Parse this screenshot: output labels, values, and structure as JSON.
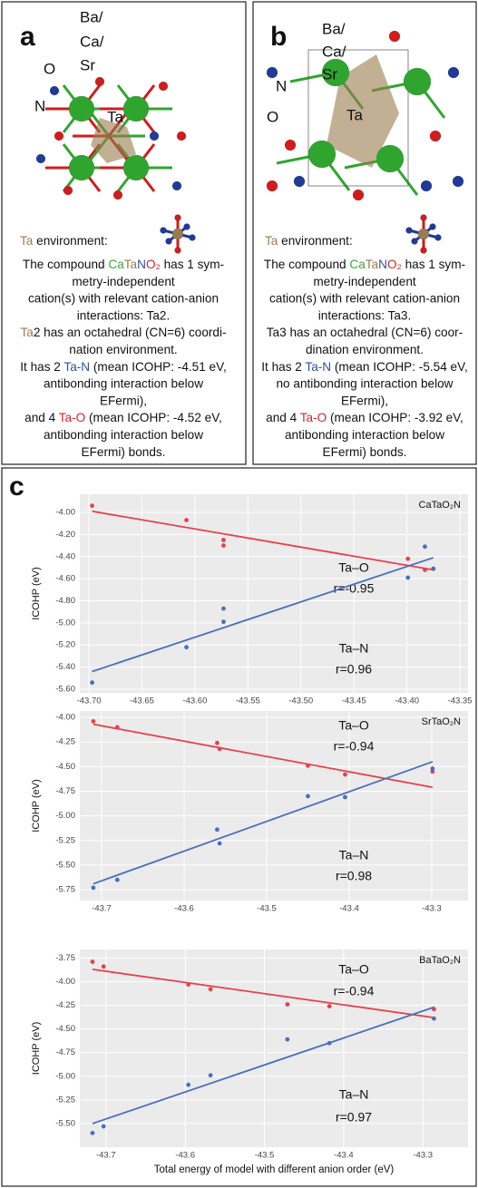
{
  "panel_a": {
    "label": "a",
    "species": [
      {
        "text": "Ba/",
        "color": "#3aa63a"
      },
      {
        "text": "Ca/",
        "color": "#3aa63a"
      },
      {
        "text": "Sr",
        "color": "#3aa63a"
      },
      {
        "text": "O",
        "color": "#d62728"
      },
      {
        "text": "N",
        "color": "#2f4fa0"
      },
      {
        "text": "Ta",
        "color": "#111111"
      }
    ],
    "environment": [
      {
        "text": "Ta",
        "color": "#9a7b4f"
      },
      " environment:"
    ],
    "lines": [
      [
        "The compound ",
        {
          "text": "Ca",
          "color": "#3aa63a"
        },
        {
          "text": "Ta",
          "color": "#9a7b4f"
        },
        {
          "text": "N",
          "color": "#2f4fa0"
        },
        {
          "text": "O₂",
          "color": "#d62728"
        },
        " has 1 sym-"
      ],
      [
        "metry-independent"
      ],
      [
        "cation(s) with relevant cation-anion"
      ],
      [
        "interactions: Ta2."
      ],
      [
        {
          "text": "Ta",
          "color": "#9a7b4f"
        },
        "2 has an octahedral (CN=6) coordi-"
      ],
      [
        "nation environment."
      ],
      [
        "It has 2 ",
        {
          "text": "Ta-N",
          "color": "#2f4fa0"
        },
        " (mean ICOHP: -4.51 eV,"
      ],
      [
        "antibonding interaction below"
      ],
      [
        "EFermi),"
      ],
      [
        "and 4 ",
        {
          "text": "Ta-O",
          "color": "#d62728"
        },
        " (mean ICOHP: -4.52 eV,"
      ],
      [
        "antibonding interaction below"
      ],
      [
        "EFermi) bonds."
      ]
    ]
  },
  "panel_b": {
    "label": "b",
    "species": [
      {
        "text": "Ba/",
        "color": "#3aa63a"
      },
      {
        "text": "Ca/",
        "color": "#3aa63a"
      },
      {
        "text": "Sr",
        "color": "#3aa63a"
      },
      {
        "text": "N",
        "color": "#2f4fa0"
      },
      {
        "text": "O",
        "color": "#d62728"
      },
      {
        "text": "Ta",
        "color": "#111111"
      }
    ],
    "environment": [
      {
        "text": "Ta",
        "color": "#9a7b4f"
      },
      " environment:"
    ],
    "lines": [
      [
        "The compound ",
        {
          "text": "Ca",
          "color": "#3aa63a"
        },
        {
          "text": "Ta",
          "color": "#9a7b4f"
        },
        {
          "text": "N",
          "color": "#2f4fa0"
        },
        {
          "text": "O₂",
          "color": "#d62728"
        },
        " has 1 sym-"
      ],
      [
        "metry-independent"
      ],
      [
        "cation(s) with relevant cation-anion"
      ],
      [
        "interactions: Ta3."
      ],
      [
        "Ta3 has an octahedral (CN=6) coor-"
      ],
      [
        "dination environment."
      ],
      [
        "It has 2 ",
        {
          "text": "Ta-N",
          "color": "#2f4fa0"
        },
        " (mean ICOHP: -5.54 eV,"
      ],
      [
        "no antibonding interaction below"
      ],
      [
        "EFermi),"
      ],
      [
        "and 4 ",
        {
          "text": "Ta-O",
          "color": "#d62728"
        },
        " (mean ICOHP: -3.92 eV,"
      ],
      [
        "antibonding interaction below"
      ],
      [
        "EFermi) bonds."
      ]
    ]
  },
  "panel_c": {
    "label": "c"
  },
  "chart_data": [
    {
      "type": "scatter",
      "title": "CaTaO₂N",
      "ylabel": "ICOHP (eV)",
      "grid": true,
      "xlim": [
        -43.7086,
        -43.3423
      ],
      "ylim": [
        -5.633,
        -3.836
      ],
      "xticks": [
        {
          "value": -43.7,
          "label": "-43.70"
        },
        -43.65,
        {
          "value": -43.6,
          "label": "-43.60"
        },
        -43.55,
        {
          "value": -43.5,
          "label": "-43.50"
        },
        -43.45,
        {
          "value": -43.4,
          "label": "-43.40"
        },
        -43.35
      ],
      "yticks": [
        {
          "value": -4.0,
          "label": "-4.00"
        },
        {
          "value": -4.2,
          "label": "-4.20"
        },
        {
          "value": -4.4,
          "label": "-4.40"
        },
        {
          "value": -4.6,
          "label": "-4.60"
        },
        {
          "value": -4.8,
          "label": "-4.80"
        },
        {
          "value": -5.0,
          "label": "-5.00"
        },
        {
          "value": -5.2,
          "label": "-5.20"
        },
        {
          "value": -5.4,
          "label": "-5.40"
        },
        {
          "value": -5.6,
          "label": "-5.60"
        }
      ],
      "series": [
        {
          "name": "Ta–O",
          "r_label": "r=-0.95",
          "color": "#e8404a",
          "x": [
            -43.697,
            -43.608,
            -43.573,
            -43.573,
            -43.399,
            -43.383,
            -43.375
          ],
          "values": [
            -3.94,
            -4.07,
            -4.25,
            -4.3,
            -4.42,
            -4.52,
            -4.51
          ],
          "fit": {
            "x": [
              -43.697,
              -43.375
            ],
            "values": [
              -3.99,
              -4.52
            ]
          }
        },
        {
          "name": "Ta–N",
          "r_label": "r=0.96",
          "color": "#4a6fbf",
          "x": [
            -43.697,
            -43.608,
            -43.573,
            -43.573,
            -43.399,
            -43.383,
            -43.375
          ],
          "values": [
            -5.54,
            -5.22,
            -4.87,
            -4.99,
            -4.59,
            -4.31,
            -4.51
          ],
          "fit": {
            "x": [
              -43.697,
              -43.375
            ],
            "values": [
              -5.44,
              -4.41
            ]
          }
        }
      ]
    },
    {
      "type": "scatter",
      "title": "SrTaO₂N",
      "ylabel": "ICOHP (eV)",
      "grid": true,
      "xlim": [
        -43.7264,
        -43.256
      ],
      "ylim": [
        -5.86,
        -3.935
      ],
      "xticks": [
        -43.7,
        -43.6,
        -43.5,
        -43.4,
        -43.3
      ],
      "yticks": [
        {
          "value": -4.0,
          "label": "-4.00"
        },
        -4.25,
        {
          "value": -4.5,
          "label": "-4.50"
        },
        -4.75,
        {
          "value": -5.0,
          "label": "-5.00"
        },
        -5.25,
        {
          "value": -5.5,
          "label": "-5.50"
        },
        -5.75
      ],
      "series": [
        {
          "name": "Ta–O",
          "r_label": "r=-0.94",
          "color": "#e8404a",
          "x": [
            -43.71,
            -43.681,
            -43.56,
            -43.557,
            -43.45,
            -43.405,
            -43.299
          ],
          "values": [
            -4.04,
            -4.1,
            -4.26,
            -4.32,
            -4.49,
            -4.58,
            -4.55
          ],
          "fit": {
            "x": [
              -43.71,
              -43.299
            ],
            "values": [
              -4.07,
              -4.71
            ]
          }
        },
        {
          "name": "Ta–N",
          "r_label": "r=0.98",
          "color": "#4a6fbf",
          "x": [
            -43.71,
            -43.681,
            -43.56,
            -43.557,
            -43.45,
            -43.405,
            -43.299
          ],
          "values": [
            -5.73,
            -5.65,
            -5.14,
            -5.28,
            -4.8,
            -4.81,
            -4.52
          ],
          "fit": {
            "x": [
              -43.71,
              -43.299
            ],
            "values": [
              -5.69,
              -4.45
            ]
          }
        }
      ]
    },
    {
      "type": "scatter",
      "title": "BaTaO₂N",
      "ylabel": "ICOHP (eV)",
      "xlabel": "Total energy of model with different anion order (eV)",
      "grid": true,
      "xlim": [
        -43.733,
        -43.243
      ],
      "ylim": [
        -5.75,
        -3.66
      ],
      "xticks": [
        -43.7,
        -43.6,
        -43.5,
        -43.4,
        -43.3
      ],
      "yticks": [
        -3.75,
        {
          "value": -4.0,
          "label": "-4.00"
        },
        -4.25,
        {
          "value": -4.5,
          "label": "-4.50"
        },
        -4.75,
        {
          "value": -5.0,
          "label": "-5.00"
        },
        -5.25,
        {
          "value": -5.5,
          "label": "-5.50"
        }
      ],
      "series": [
        {
          "name": "Ta–O",
          "r_label": "r=-0.94",
          "color": "#e8404a",
          "x": [
            -43.717,
            -43.703,
            -43.596,
            -43.568,
            -43.471,
            -43.418,
            -43.286
          ],
          "values": [
            -3.79,
            -3.84,
            -4.03,
            -4.08,
            -4.24,
            -4.26,
            -4.29
          ],
          "fit": {
            "x": [
              -43.717,
              -43.286
            ],
            "values": [
              -3.87,
              -4.38
            ]
          }
        },
        {
          "name": "Ta–N",
          "r_label": "r=0.97",
          "color": "#4a6fbf",
          "x": [
            -43.717,
            -43.703,
            -43.596,
            -43.568,
            -43.471,
            -43.418,
            -43.286
          ],
          "values": [
            -5.6,
            -5.53,
            -5.09,
            -4.99,
            -4.61,
            -4.65,
            -4.39
          ],
          "fit": {
            "x": [
              -43.717,
              -43.286
            ],
            "values": [
              -5.5,
              -4.27
            ]
          }
        }
      ]
    }
  ]
}
